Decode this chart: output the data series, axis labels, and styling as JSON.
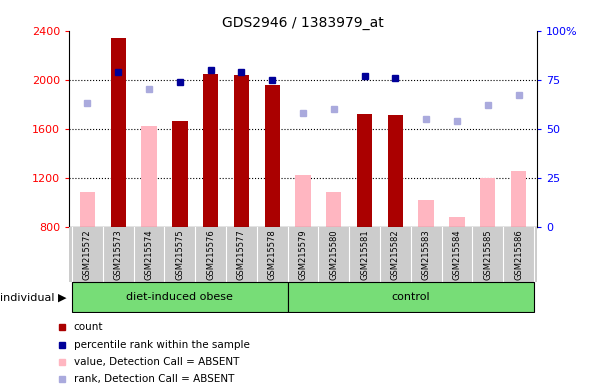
{
  "title": "GDS2946 / 1383979_at",
  "samples": [
    "GSM215572",
    "GSM215573",
    "GSM215574",
    "GSM215575",
    "GSM215576",
    "GSM215577",
    "GSM215578",
    "GSM215579",
    "GSM215580",
    "GSM215581",
    "GSM215582",
    "GSM215583",
    "GSM215584",
    "GSM215585",
    "GSM215586"
  ],
  "count_values": [
    null,
    2340,
    null,
    1660,
    2050,
    2040,
    1960,
    null,
    null,
    1720,
    1710,
    null,
    null,
    null,
    null
  ],
  "absent_value_values": [
    1080,
    null,
    1620,
    null,
    null,
    null,
    null,
    1220,
    1080,
    null,
    null,
    1020,
    875,
    1195,
    1250
  ],
  "percentile_rank_present": [
    null,
    79,
    null,
    74,
    80,
    79,
    75,
    null,
    null,
    77,
    76,
    null,
    null,
    null,
    null
  ],
  "percentile_rank_absent": [
    63,
    null,
    70,
    null,
    null,
    null,
    null,
    58,
    60,
    null,
    null,
    55,
    54,
    62,
    67
  ],
  "ylim_left": [
    800,
    2400
  ],
  "ylim_right": [
    0,
    100
  ],
  "yticks_left": [
    800,
    1200,
    1600,
    2000,
    2400
  ],
  "yticks_right": [
    0,
    25,
    50,
    75,
    100
  ],
  "bar_color_present": "#AA0000",
  "bar_color_absent": "#FFB6C1",
  "dot_color_present": "#000099",
  "dot_color_absent": "#AAAADD",
  "group1_name": "diet-induced obese",
  "group1_indices": [
    0,
    1,
    2,
    3,
    4,
    5,
    6
  ],
  "group2_name": "control",
  "group2_indices": [
    7,
    8,
    9,
    10,
    11,
    12,
    13,
    14
  ],
  "group_color": "#77DD77",
  "cell_bg": "#CCCCCC",
  "individual_label": "individual",
  "legend_items": [
    {
      "color": "#AA0000",
      "label": "count"
    },
    {
      "color": "#000099",
      "label": "percentile rank within the sample"
    },
    {
      "color": "#FFB6C1",
      "label": "value, Detection Call = ABSENT"
    },
    {
      "color": "#AAAADD",
      "label": "rank, Detection Call = ABSENT"
    }
  ]
}
